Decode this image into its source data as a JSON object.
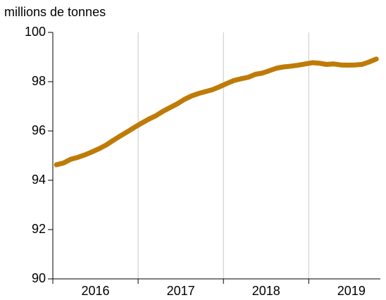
{
  "chart_data": {
    "type": "line",
    "y_axis_label": "millions de tonnes",
    "x": [
      2016.042,
      2016.125,
      2016.208,
      2016.292,
      2016.375,
      2016.458,
      2016.542,
      2016.625,
      2016.708,
      2016.792,
      2016.875,
      2016.958,
      2017.042,
      2017.125,
      2017.208,
      2017.292,
      2017.375,
      2017.458,
      2017.542,
      2017.625,
      2017.708,
      2017.792,
      2017.875,
      2017.958,
      2018.042,
      2018.125,
      2018.208,
      2018.292,
      2018.375,
      2018.458,
      2018.542,
      2018.625,
      2018.708,
      2018.792,
      2018.875,
      2018.958,
      2019.042,
      2019.125,
      2019.208,
      2019.292,
      2019.375,
      2019.458,
      2019.542,
      2019.625,
      2019.708,
      2019.792
    ],
    "series": [
      {
        "color": "#bf7b08",
        "values": [
          94.63,
          94.7,
          94.85,
          94.93,
          95.03,
          95.15,
          95.28,
          95.43,
          95.62,
          95.8,
          95.97,
          96.15,
          96.32,
          96.48,
          96.62,
          96.8,
          96.95,
          97.1,
          97.28,
          97.42,
          97.52,
          97.6,
          97.68,
          97.8,
          97.93,
          98.05,
          98.12,
          98.18,
          98.3,
          98.35,
          98.45,
          98.55,
          98.6,
          98.63,
          98.67,
          98.72,
          98.77,
          98.75,
          98.7,
          98.72,
          98.68,
          98.67,
          98.68,
          98.7,
          98.8,
          98.92
        ]
      }
    ],
    "xlim": [
      2016,
      2019.84
    ],
    "xticks": [
      2016,
      2017,
      2018,
      2019
    ],
    "ylim": [
      90,
      100
    ],
    "yticks": [
      90,
      92,
      94,
      96,
      98,
      100
    ],
    "grid": "x"
  }
}
